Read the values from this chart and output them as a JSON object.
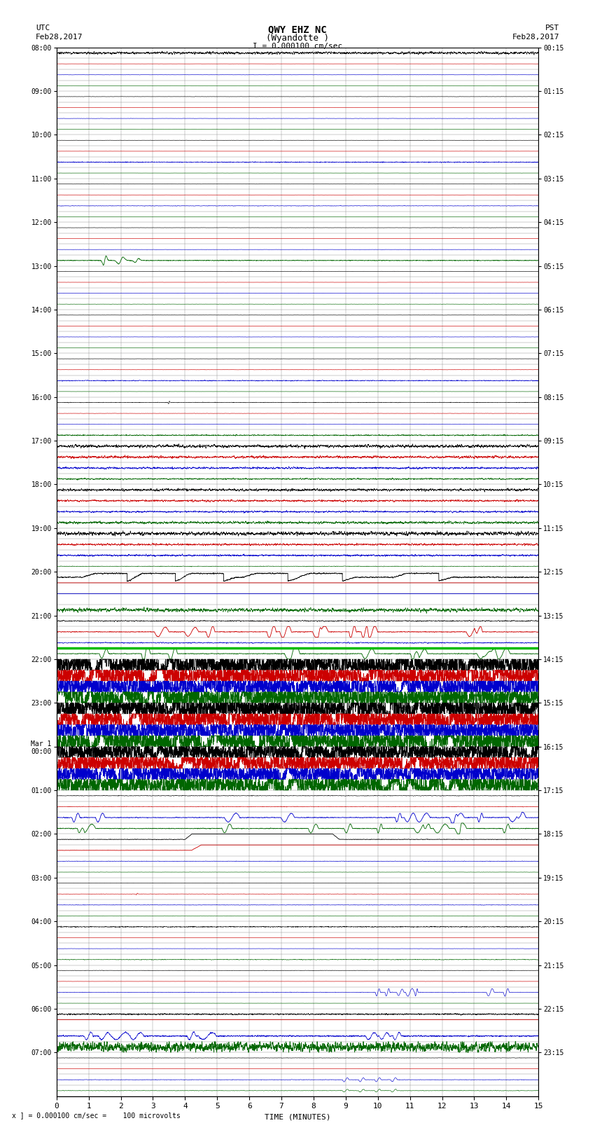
{
  "title_line1": "QWY EHZ NC",
  "title_line2": "(Wyandotte )",
  "scale_label": "I = 0.000100 cm/sec",
  "left_label_line1": "UTC",
  "left_label_line2": "Feb28,2017",
  "right_label_line1": "PST",
  "right_label_line2": "Feb28,2017",
  "xlabel": "TIME (MINUTES)",
  "bottom_note": "x ] = 0.000100 cm/sec =    100 microvolts",
  "utc_times": [
    "08:00",
    "",
    "",
    "",
    "09:00",
    "",
    "",
    "",
    "10:00",
    "",
    "",
    "",
    "11:00",
    "",
    "",
    "",
    "12:00",
    "",
    "",
    "",
    "13:00",
    "",
    "",
    "",
    "14:00",
    "",
    "",
    "",
    "15:00",
    "",
    "",
    "",
    "16:00",
    "",
    "",
    "",
    "17:00",
    "",
    "",
    "",
    "18:00",
    "",
    "",
    "",
    "19:00",
    "",
    "",
    "",
    "20:00",
    "",
    "",
    "",
    "21:00",
    "",
    "",
    "",
    "22:00",
    "",
    "",
    "",
    "23:00",
    "",
    "",
    "",
    "Mar 1\n00:00",
    "",
    "",
    "",
    "01:00",
    "",
    "",
    "",
    "02:00",
    "",
    "",
    "",
    "03:00",
    "",
    "",
    "",
    "04:00",
    "",
    "",
    "",
    "05:00",
    "",
    "",
    "",
    "06:00",
    "",
    "",
    "",
    "07:00",
    "",
    "",
    ""
  ],
  "pst_times": [
    "00:15",
    "",
    "",
    "",
    "01:15",
    "",
    "",
    "",
    "02:15",
    "",
    "",
    "",
    "03:15",
    "",
    "",
    "",
    "04:15",
    "",
    "",
    "",
    "05:15",
    "",
    "",
    "",
    "06:15",
    "",
    "",
    "",
    "07:15",
    "",
    "",
    "",
    "08:15",
    "",
    "",
    "",
    "09:15",
    "",
    "",
    "",
    "10:15",
    "",
    "",
    "",
    "11:15",
    "",
    "",
    "",
    "12:15",
    "",
    "",
    "",
    "13:15",
    "",
    "",
    "",
    "14:15",
    "",
    "",
    "",
    "15:15",
    "",
    "",
    "",
    "16:15",
    "",
    "",
    "",
    "17:15",
    "",
    "",
    "",
    "18:15",
    "",
    "",
    "",
    "19:15",
    "",
    "",
    "",
    "20:15",
    "",
    "",
    "",
    "21:15",
    "",
    "",
    "",
    "22:15",
    "",
    "",
    "",
    "23:15",
    "",
    "",
    ""
  ],
  "n_rows": 96,
  "n_cols": 15,
  "background_color": "#ffffff",
  "grid_color": "#888888",
  "trace_colors": [
    "#000000",
    "#cc0000",
    "#0000cc",
    "#006600"
  ],
  "green_highlight_color": "#00bb00",
  "seed": 12345
}
